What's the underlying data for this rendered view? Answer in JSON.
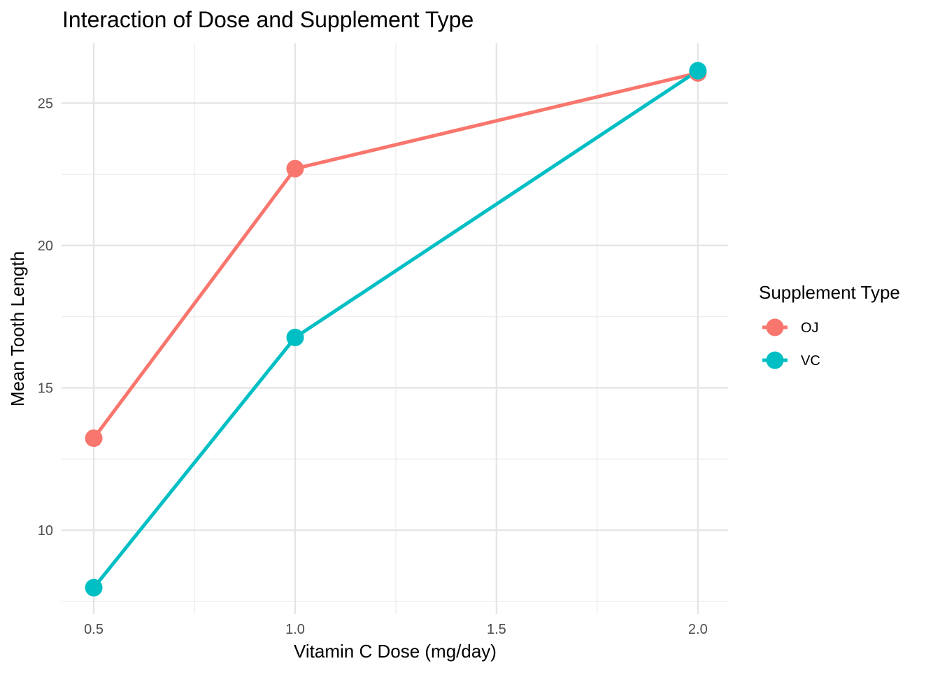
{
  "chart_data": {
    "type": "line",
    "title": "Interaction of Dose and Supplement Type",
    "xlabel": "Vitamin C Dose (mg/day)",
    "ylabel": "Mean Tooth Length",
    "x_ticks": [
      "0.5",
      "1.0",
      "1.5",
      "2.0"
    ],
    "y_ticks": [
      "10",
      "15",
      "20",
      "25"
    ],
    "x_tick_values": [
      0.5,
      1.0,
      1.5,
      2.0
    ],
    "y_tick_values": [
      10,
      15,
      20,
      25
    ],
    "xlim": [
      0.42,
      2.075
    ],
    "ylim": [
      7.05,
      27.1
    ],
    "grid": true,
    "legend_title": "Supplement Type",
    "legend_position": "right",
    "series": [
      {
        "name": "OJ",
        "color": "#F8766D",
        "x": [
          0.5,
          1.0,
          2.0
        ],
        "y": [
          13.23,
          22.7,
          26.06
        ]
      },
      {
        "name": "VC",
        "color": "#00BFC4",
        "x": [
          0.5,
          1.0,
          2.0
        ],
        "y": [
          7.98,
          16.77,
          26.14
        ]
      }
    ]
  }
}
